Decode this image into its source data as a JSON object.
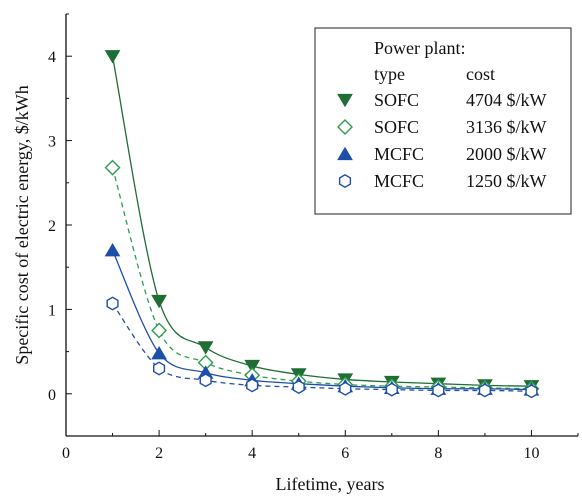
{
  "chart_data": {
    "type": "line",
    "xlabel": "Lifetime, years",
    "ylabel": "Specific cost of electric energy, $/kWh",
    "xlim": [
      0,
      11
    ],
    "ylim": [
      -0.5,
      4.5
    ],
    "xticks": [
      "0",
      "2",
      "4",
      "6",
      "8",
      "10"
    ],
    "yticks": [
      "0",
      "1",
      "2",
      "3",
      "4"
    ],
    "x": [
      1,
      2,
      3,
      4,
      5,
      6,
      7,
      8,
      9,
      10
    ],
    "legend": {
      "position": "top-right",
      "heading": "Power plant:",
      "col_type": "type",
      "col_cost": "cost"
    },
    "series": [
      {
        "name": "SOFC",
        "cost": "4704 $/kW",
        "marker": "triangle-down",
        "color": "#1f6e34",
        "line_style": "solid",
        "values": [
          4.0,
          1.1,
          0.55,
          0.33,
          0.23,
          0.17,
          0.14,
          0.12,
          0.1,
          0.09
        ]
      },
      {
        "name": "SOFC",
        "cost": "3136 $/kW",
        "marker": "diamond-open",
        "color": "#2e9e4e",
        "line_style": "dashed",
        "values": [
          2.68,
          0.75,
          0.37,
          0.22,
          0.15,
          0.11,
          0.09,
          0.08,
          0.07,
          0.06
        ]
      },
      {
        "name": "MCFC",
        "cost": "2000 $/kW",
        "marker": "triangle-up",
        "color": "#1e4fa8",
        "line_style": "solid",
        "values": [
          1.7,
          0.48,
          0.25,
          0.16,
          0.12,
          0.09,
          0.07,
          0.06,
          0.06,
          0.05
        ]
      },
      {
        "name": "MCFC",
        "cost": "1250 $/kW",
        "marker": "hexagon-open",
        "color": "#1e4fa8",
        "line_style": "dashed",
        "values": [
          1.07,
          0.3,
          0.16,
          0.1,
          0.08,
          0.06,
          0.05,
          0.04,
          0.04,
          0.03
        ]
      }
    ]
  }
}
